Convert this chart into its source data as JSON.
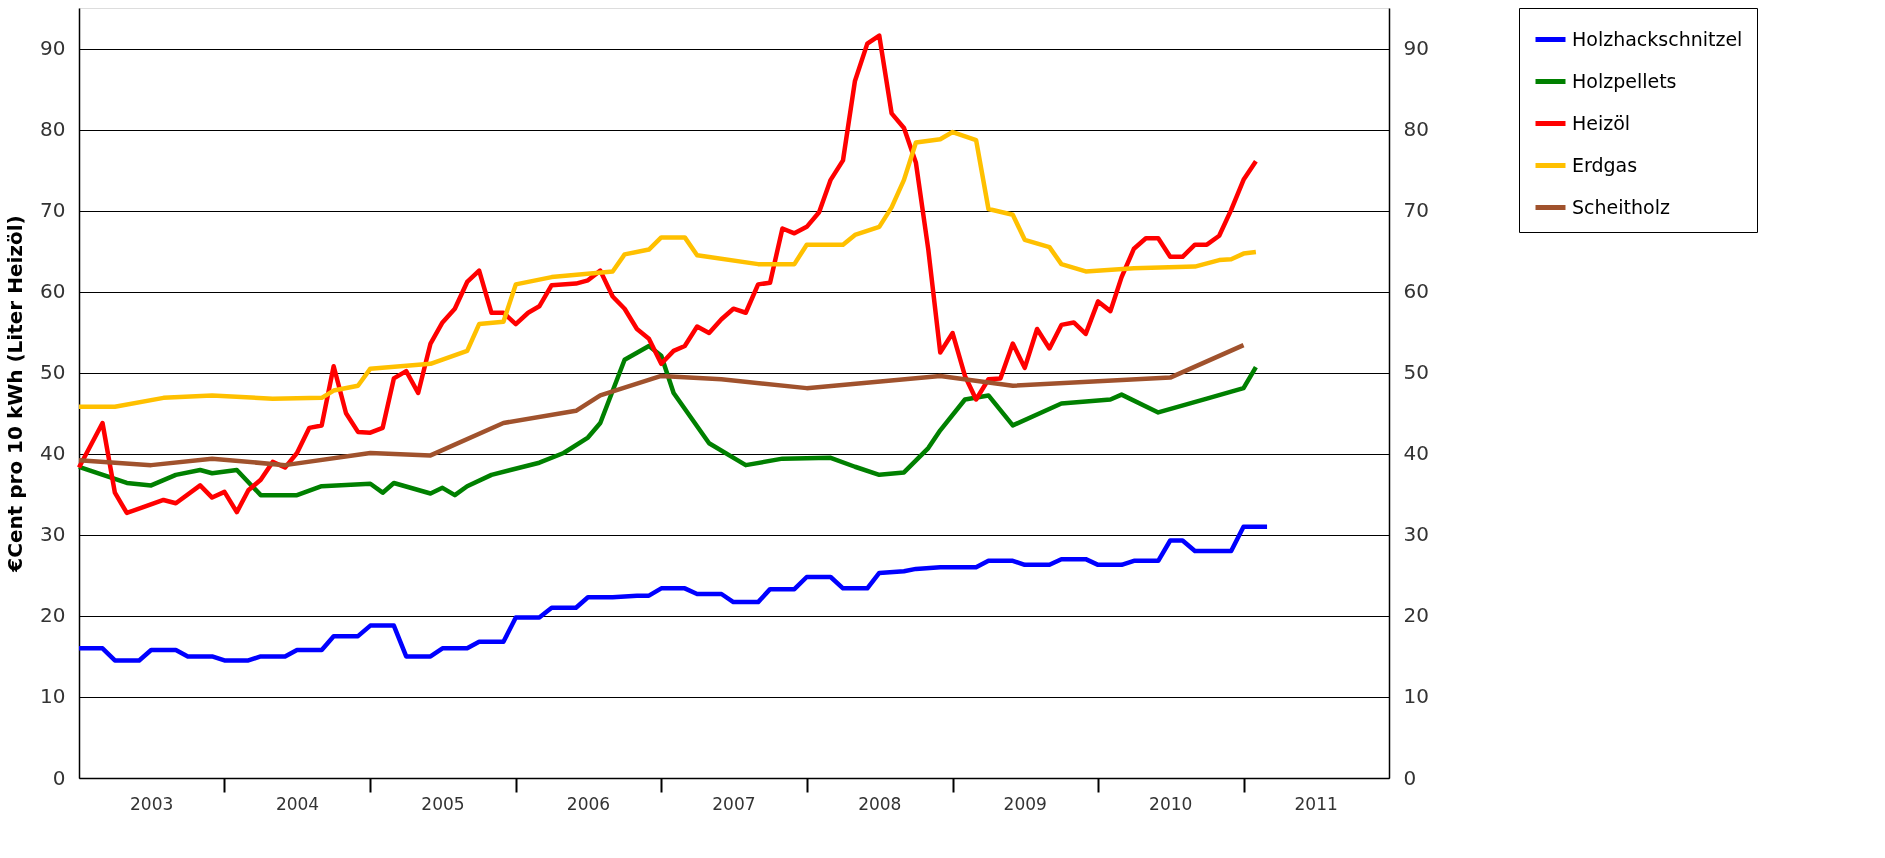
{
  "chart_data": {
    "type": "line",
    "ylabel": "€Cent pro 10 kWh (Liter Heizöl)",
    "xlim": [
      "2003-01-01",
      "2012-01-01"
    ],
    "ylim": [
      0,
      95
    ],
    "yticks": [
      0,
      10,
      20,
      30,
      40,
      50,
      60,
      70,
      80,
      90
    ],
    "y2lim": [
      0,
      95
    ],
    "y2ticks": [
      0,
      10,
      20,
      30,
      40,
      50,
      60,
      70,
      80,
      90
    ],
    "xticks": [
      {
        "value": "2003-07-01",
        "label": "2003"
      },
      {
        "value": "2004-07-01",
        "label": "2004"
      },
      {
        "value": "2005-07-01",
        "label": "2005"
      },
      {
        "value": "2006-07-01",
        "label": "2006"
      },
      {
        "value": "2007-07-01",
        "label": "2007"
      },
      {
        "value": "2008-07-01",
        "label": "2008"
      },
      {
        "value": "2009-07-01",
        "label": "2009"
      },
      {
        "value": "2010-07-01",
        "label": "2010"
      },
      {
        "value": "2011-07-01",
        "label": "2011"
      },
      {
        "value": "2004-01-01",
        "label": null
      },
      {
        "value": "2005-01-01",
        "label": null
      },
      {
        "value": "2006-01-01",
        "label": null
      },
      {
        "value": "2007-01-01",
        "label": null
      },
      {
        "value": "2008-01-01",
        "label": null
      },
      {
        "value": "2009-01-01",
        "label": null
      },
      {
        "value": "2010-01-01",
        "label": null
      },
      {
        "value": "2011-01-01",
        "label": null
      }
    ],
    "grid": "y",
    "legend": "right",
    "line_style": "solid",
    "marker": "none",
    "series": [
      {
        "name": "Holzhackschnitzel",
        "color": "#0000ff",
        "x": [
          "2003-01",
          "2003-03",
          "2003-04",
          "2003-06",
          "2003-07",
          "2003-09",
          "2003-10",
          "2003-12",
          "2004-01",
          "2004-03",
          "2004-04",
          "2004-06",
          "2004-07",
          "2004-09",
          "2004-10",
          "2004-12",
          "2005-01",
          "2005-03",
          "2005-04",
          "2005-06",
          "2005-07",
          "2005-09",
          "2005-10",
          "2005-12",
          "2006-01",
          "2006-03",
          "2006-04",
          "2006-06",
          "2006-07",
          "2006-09",
          "2006-11",
          "2006-12",
          "2007-01",
          "2007-03",
          "2007-04",
          "2007-06",
          "2007-07",
          "2007-09",
          "2007-10",
          "2007-12",
          "2008-01",
          "2008-03",
          "2008-04",
          "2008-06",
          "2008-07",
          "2008-09",
          "2008-10",
          "2008-12",
          "2009-03",
          "2009-04",
          "2009-06",
          "2009-07",
          "2009-09",
          "2009-10",
          "2009-12",
          "2010-01",
          "2010-03",
          "2010-04",
          "2010-06",
          "2010-07",
          "2010-08",
          "2010-09",
          "2010-12",
          "2011-01",
          "2011-03"
        ],
        "values": [
          16,
          16,
          14.5,
          14.5,
          15.8,
          15.8,
          15,
          15,
          14.5,
          14.5,
          15,
          15,
          15.8,
          15.8,
          17.5,
          17.5,
          18.8,
          18.8,
          15,
          15,
          16,
          16,
          16.8,
          16.8,
          19.8,
          19.8,
          21,
          21,
          22.3,
          22.3,
          22.5,
          22.5,
          23.4,
          23.4,
          22.7,
          22.7,
          21.7,
          21.7,
          23.3,
          23.3,
          24.8,
          24.8,
          23.4,
          23.4,
          25.3,
          25.5,
          25.8,
          26,
          26,
          26.8,
          26.8,
          26.3,
          26.3,
          27,
          27,
          26.3,
          26.3,
          26.8,
          26.8,
          29.3,
          29.3,
          28,
          28,
          31,
          31
        ]
      },
      {
        "name": "Holzpellets",
        "color": "#008000",
        "x": [
          "2003-01",
          "2003-05",
          "2003-07",
          "2003-09",
          "2003-11",
          "2003-12",
          "2004-02",
          "2004-04",
          "2004-07",
          "2004-09",
          "2005-01",
          "2005-02",
          "2005-03",
          "2005-06",
          "2005-07",
          "2005-08",
          "2005-09",
          "2005-11",
          "2006-03",
          "2006-05",
          "2006-07",
          "2006-08",
          "2006-10",
          "2006-12",
          "2007-01",
          "2007-02",
          "2007-05",
          "2007-08",
          "2007-11",
          "2008-03",
          "2008-05",
          "2008-07",
          "2008-09",
          "2008-11",
          "2008-12",
          "2009-02",
          "2009-04",
          "2009-06",
          "2009-10",
          "2010-02",
          "2010-03",
          "2010-06",
          "2010-10",
          "2011-01",
          "2011-02"
        ],
        "values": [
          38.4,
          36.4,
          36.1,
          37.4,
          38,
          37.6,
          38,
          34.9,
          34.9,
          36,
          36.3,
          35.2,
          36.4,
          35.1,
          35.8,
          34.9,
          36,
          37.4,
          38.9,
          40.1,
          42,
          43.8,
          51.6,
          53.3,
          52.1,
          47.5,
          41.3,
          38.6,
          39.4,
          39.5,
          38.4,
          37.4,
          37.7,
          40.7,
          42.9,
          46.7,
          47.2,
          43.5,
          46.2,
          46.7,
          47.3,
          45.1,
          46.8,
          48.1,
          50.7
        ]
      },
      {
        "name": "Heizöl",
        "color": "#ff0000",
        "x": [
          "2003-01",
          "2003-03",
          "2003-04",
          "2003-05",
          "2003-08",
          "2003-09",
          "2003-11",
          "2003-12",
          "2004-01",
          "2004-02",
          "2004-03",
          "2004-04",
          "2004-05",
          "2004-06",
          "2004-07",
          "2004-08",
          "2004-09",
          "2004-10",
          "2004-11",
          "2004-12",
          "2005-01",
          "2005-02",
          "2005-03",
          "2005-04",
          "2005-05",
          "2005-06",
          "2005-07",
          "2005-08",
          "2005-09",
          "2005-10",
          "2005-11",
          "2005-12",
          "2006-01",
          "2006-02",
          "2006-03",
          "2006-04",
          "2006-06",
          "2006-07",
          "2006-08",
          "2006-09",
          "2006-10",
          "2006-11",
          "2006-12",
          "2007-01",
          "2007-02",
          "2007-03",
          "2007-04",
          "2007-05",
          "2007-06",
          "2007-07",
          "2007-08",
          "2007-09",
          "2007-10",
          "2007-11",
          "2007-12",
          "2008-01",
          "2008-02",
          "2008-03",
          "2008-04",
          "2008-05",
          "2008-06",
          "2008-07",
          "2008-08",
          "2008-09",
          "2008-10",
          "2008-11",
          "2008-12",
          "2009-01",
          "2009-02",
          "2009-03",
          "2009-04",
          "2009-05",
          "2009-06",
          "2009-07",
          "2009-08",
          "2009-09",
          "2009-10",
          "2009-11",
          "2009-12",
          "2010-01",
          "2010-02",
          "2010-03",
          "2010-04",
          "2010-05",
          "2010-06",
          "2010-07",
          "2010-08",
          "2010-09",
          "2010-10",
          "2010-11",
          "2010-12",
          "2011-01",
          "2011-02"
        ],
        "values": [
          38.3,
          43.8,
          35.2,
          32.7,
          34.3,
          33.9,
          36.1,
          34.6,
          35.3,
          32.8,
          35.5,
          36.8,
          39,
          38.3,
          40.1,
          43.2,
          43.5,
          50.8,
          45,
          42.7,
          42.6,
          43.2,
          49.3,
          50.2,
          47.5,
          53.6,
          56.2,
          57.9,
          61.2,
          62.6,
          57.4,
          57.4,
          56,
          57.4,
          58.2,
          60.8,
          61,
          61.4,
          62.6,
          59.4,
          57.9,
          55.4,
          54.2,
          51.1,
          52.7,
          53.3,
          55.7,
          54.9,
          56.6,
          57.9,
          57.4,
          60.9,
          61.1,
          67.8,
          67.2,
          68,
          69.8,
          73.8,
          76.2,
          86,
          90.6,
          91.6,
          82,
          80.2,
          75.9,
          65.2,
          52.5,
          54.9,
          49.6,
          46.7,
          49.2,
          49.3,
          53.6,
          50.6,
          55.4,
          53,
          55.9,
          56.2,
          54.8,
          58.8,
          57.6,
          61.8,
          65.3,
          66.6,
          66.6,
          64.3,
          64.3,
          65.8,
          65.8,
          66.9,
          70.1,
          73.8,
          76.1
        ]
      },
      {
        "name": "Erdgas",
        "color": "#ffc000",
        "x": [
          "2003-01",
          "2003-04",
          "2003-08",
          "2003-12",
          "2004-05",
          "2004-09",
          "2004-10",
          "2004-12",
          "2005-01",
          "2005-06",
          "2005-09",
          "2005-10",
          "2005-12",
          "2006-01",
          "2006-04",
          "2006-09",
          "2006-10",
          "2006-12",
          "2007-01",
          "2007-03",
          "2007-04",
          "2007-09",
          "2007-12",
          "2008-01",
          "2008-04",
          "2008-05",
          "2008-07",
          "2008-08",
          "2008-09",
          "2008-10",
          "2008-12",
          "2009-01",
          "2009-03",
          "2009-04",
          "2009-06",
          "2009-07",
          "2009-09",
          "2009-10",
          "2009-12",
          "2010-04",
          "2010-09",
          "2010-11",
          "2010-12",
          "2011-01",
          "2011-02"
        ],
        "values": [
          45.8,
          45.8,
          46.9,
          47.2,
          46.8,
          46.9,
          47.8,
          48.4,
          50.5,
          51.1,
          52.7,
          56,
          56.3,
          60.9,
          61.8,
          62.5,
          64.6,
          65.2,
          66.7,
          66.7,
          64.5,
          63.4,
          63.4,
          65.8,
          65.8,
          67,
          68,
          70.4,
          73.8,
          78.4,
          78.8,
          79.7,
          78.7,
          70.2,
          69.5,
          66.4,
          65.5,
          63.4,
          62.5,
          62.9,
          63.1,
          63.9,
          64,
          64.7,
          64.9
        ]
      },
      {
        "name": "Scheitholz",
        "color": "#a0522d",
        "x": [
          "2003-01",
          "2003-07",
          "2003-12",
          "2004-06",
          "2005-01",
          "2005-06",
          "2005-12",
          "2006-06",
          "2006-08",
          "2007-01",
          "2007-06",
          "2008-01",
          "2008-12",
          "2009-06",
          "2010-07",
          "2011-01"
        ],
        "values": [
          39.2,
          38.6,
          39.4,
          38.6,
          40.1,
          39.8,
          43.8,
          45.3,
          47.2,
          49.6,
          49.2,
          48.1,
          49.6,
          48.4,
          49.4,
          53.4
        ]
      }
    ]
  }
}
